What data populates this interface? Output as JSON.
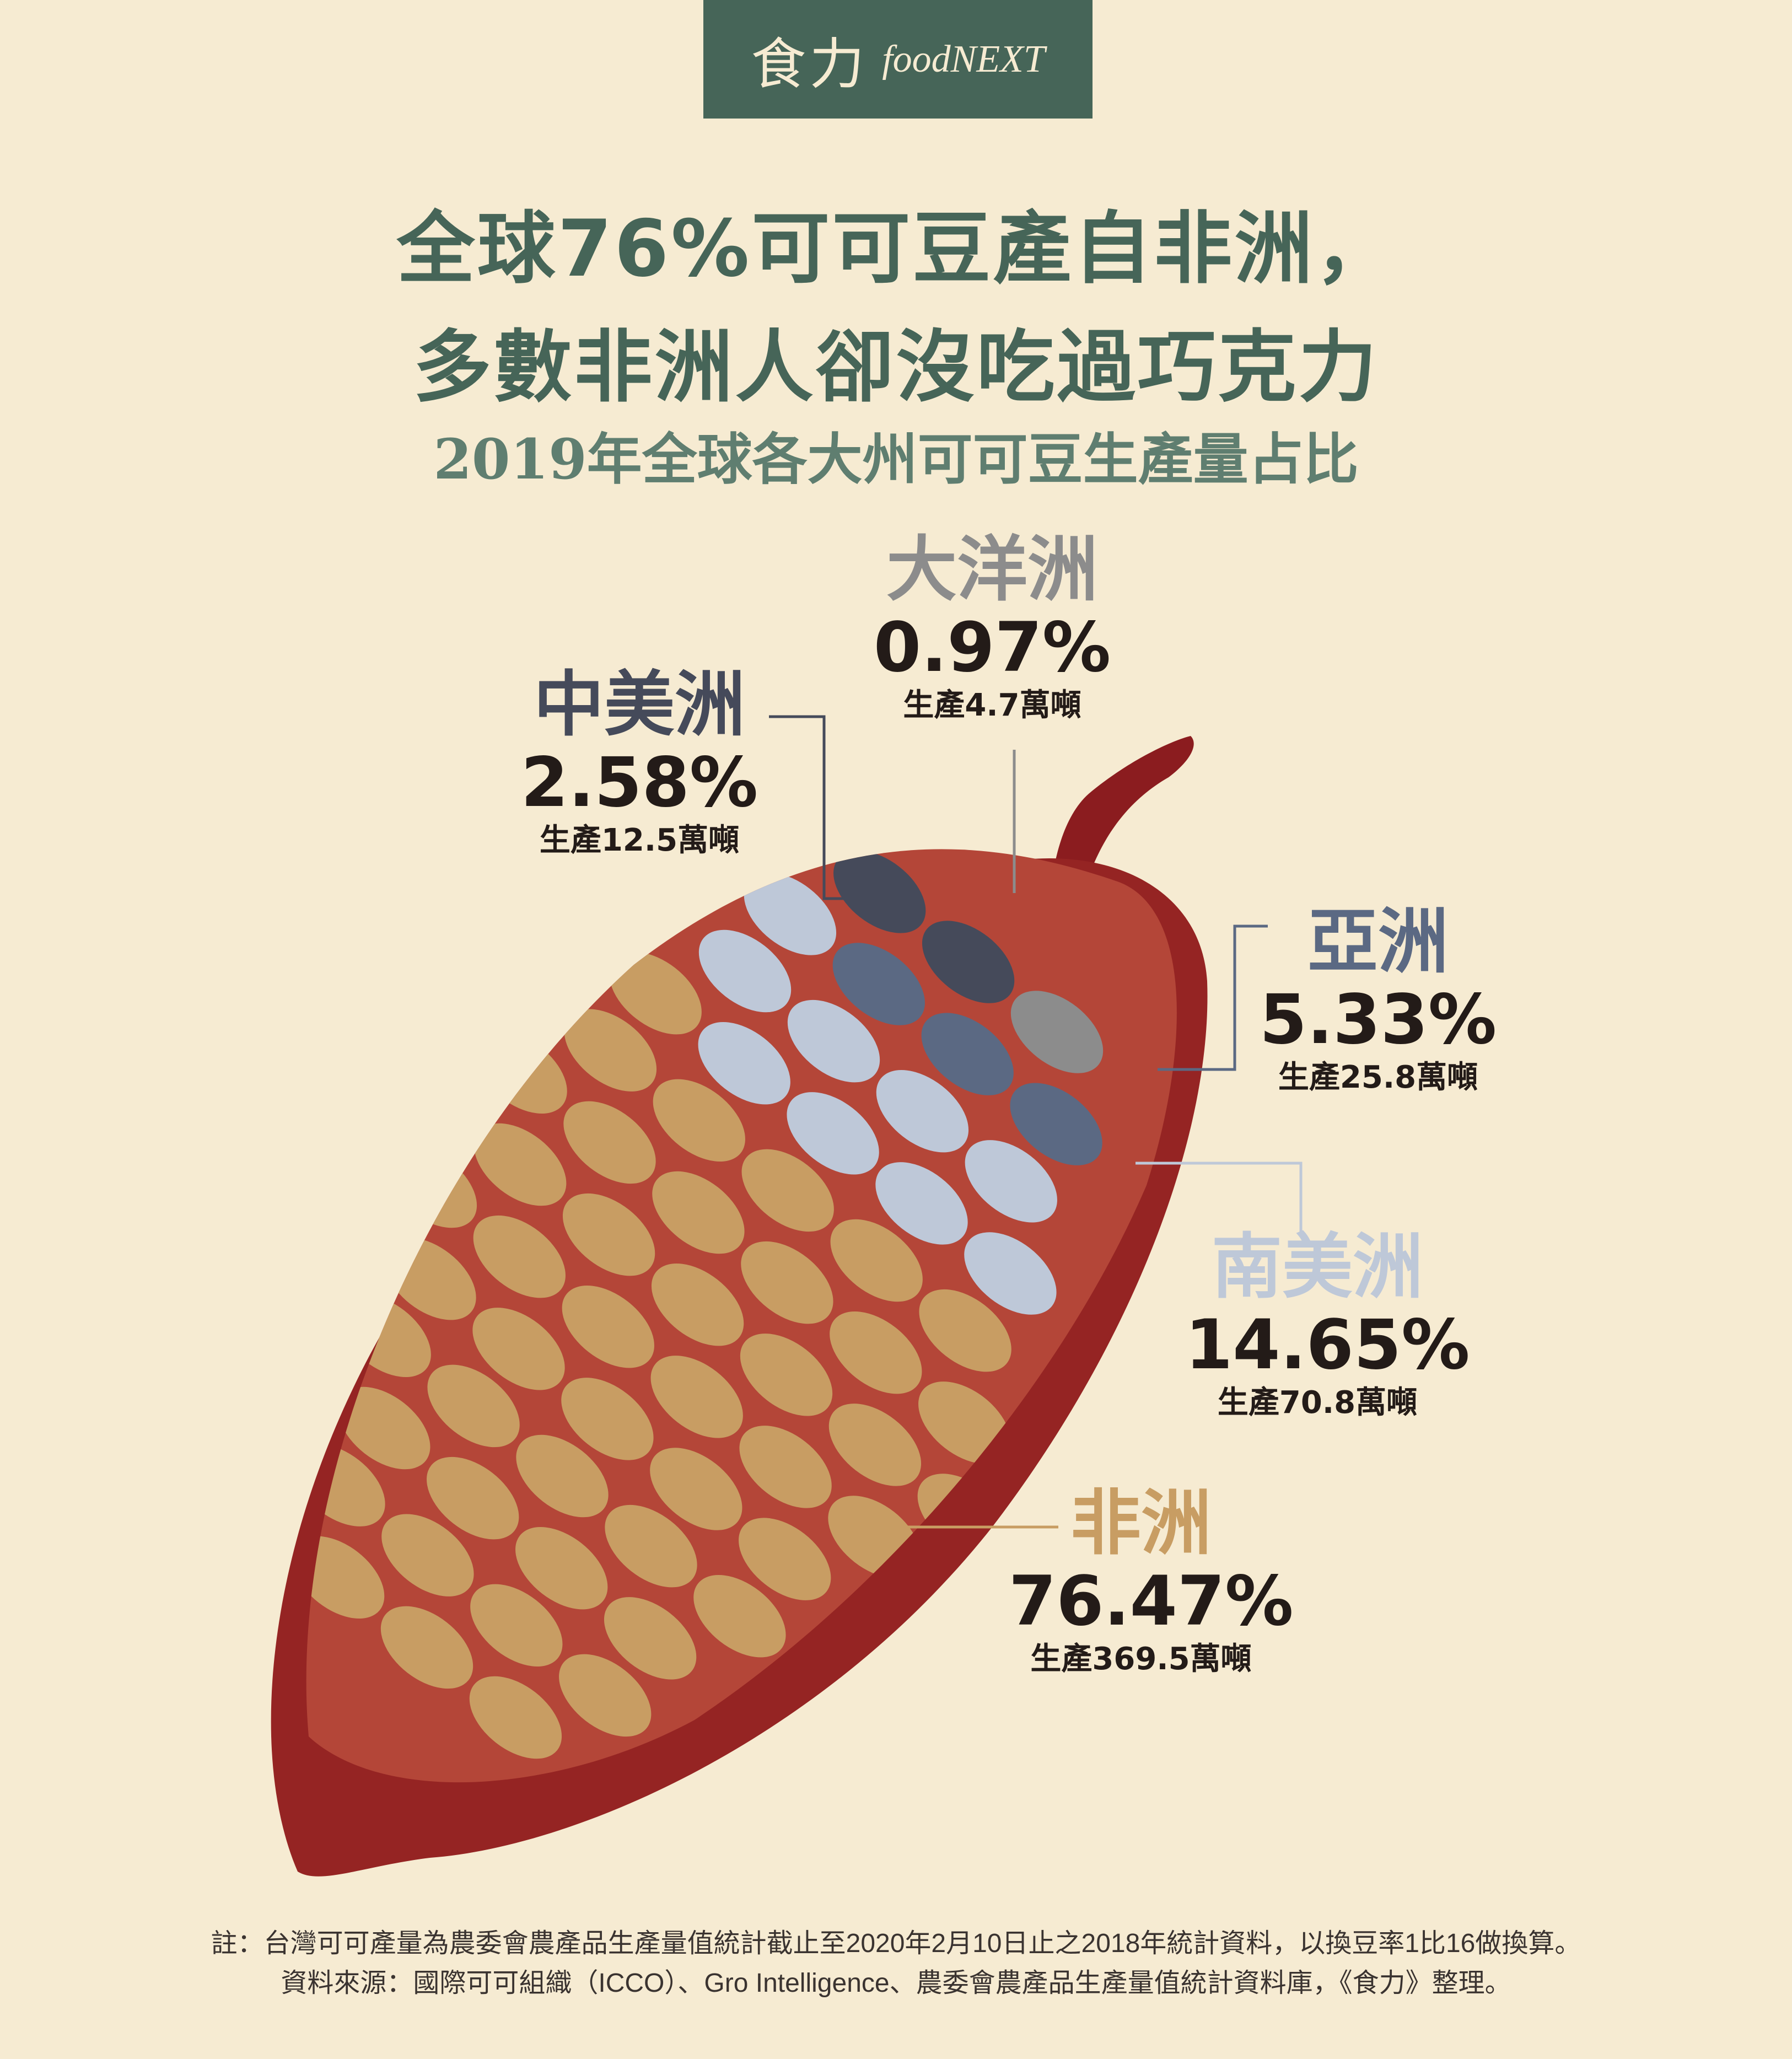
{
  "logo": {
    "cn": "食力",
    "en": "foodNEXT"
  },
  "title_line1": "全球76%可可豆產自非洲，",
  "title_line2": "多數非洲人卻沒吃過巧克力",
  "subtitle": "2019年全球各大州可可豆生產量占比",
  "chart_data": {
    "type": "pie",
    "title": "2019年全球各大州可可豆生產量占比",
    "series": [
      {
        "name": "非洲",
        "value": 76.47,
        "pct_label": "76.47%",
        "production_label": "生產369.5萬噸",
        "production": 369.5
      },
      {
        "name": "南美洲",
        "value": 14.65,
        "pct_label": "14.65%",
        "production_label": "生產70.8萬噸",
        "production": 70.8
      },
      {
        "name": "亞洲",
        "value": 5.33,
        "pct_label": "5.33%",
        "production_label": "生產25.8萬噸",
        "production": 25.8
      },
      {
        "name": "中美洲",
        "value": 2.58,
        "pct_label": "2.58%",
        "production_label": "生產12.5萬噸",
        "production": 12.5
      },
      {
        "name": "大洋洲",
        "value": 0.97,
        "pct_label": "0.97%",
        "production_label": "生產4.7萬噸",
        "production": 4.7
      }
    ]
  },
  "colors": {
    "background": "#f6ebd2",
    "pod_outer": "#952423",
    "pod_inner": "#b44638",
    "africa": "#c89d63",
    "south_america": "#bec8d8",
    "asia": "#5b6983",
    "central_america": "#454a5a",
    "oceania": "#8c8c8c",
    "title": "#466558"
  },
  "footnote": "註：台灣可可產量為農委會農產品生產量值統計截止至2020年2月10日止之2018年統計資料，以換豆率1比16做換算。",
  "source": "資料來源：國際可可組織（ICCO）、Gro Intelligence、農委會農產品生產量值統計資料庫，《食力》整理。"
}
